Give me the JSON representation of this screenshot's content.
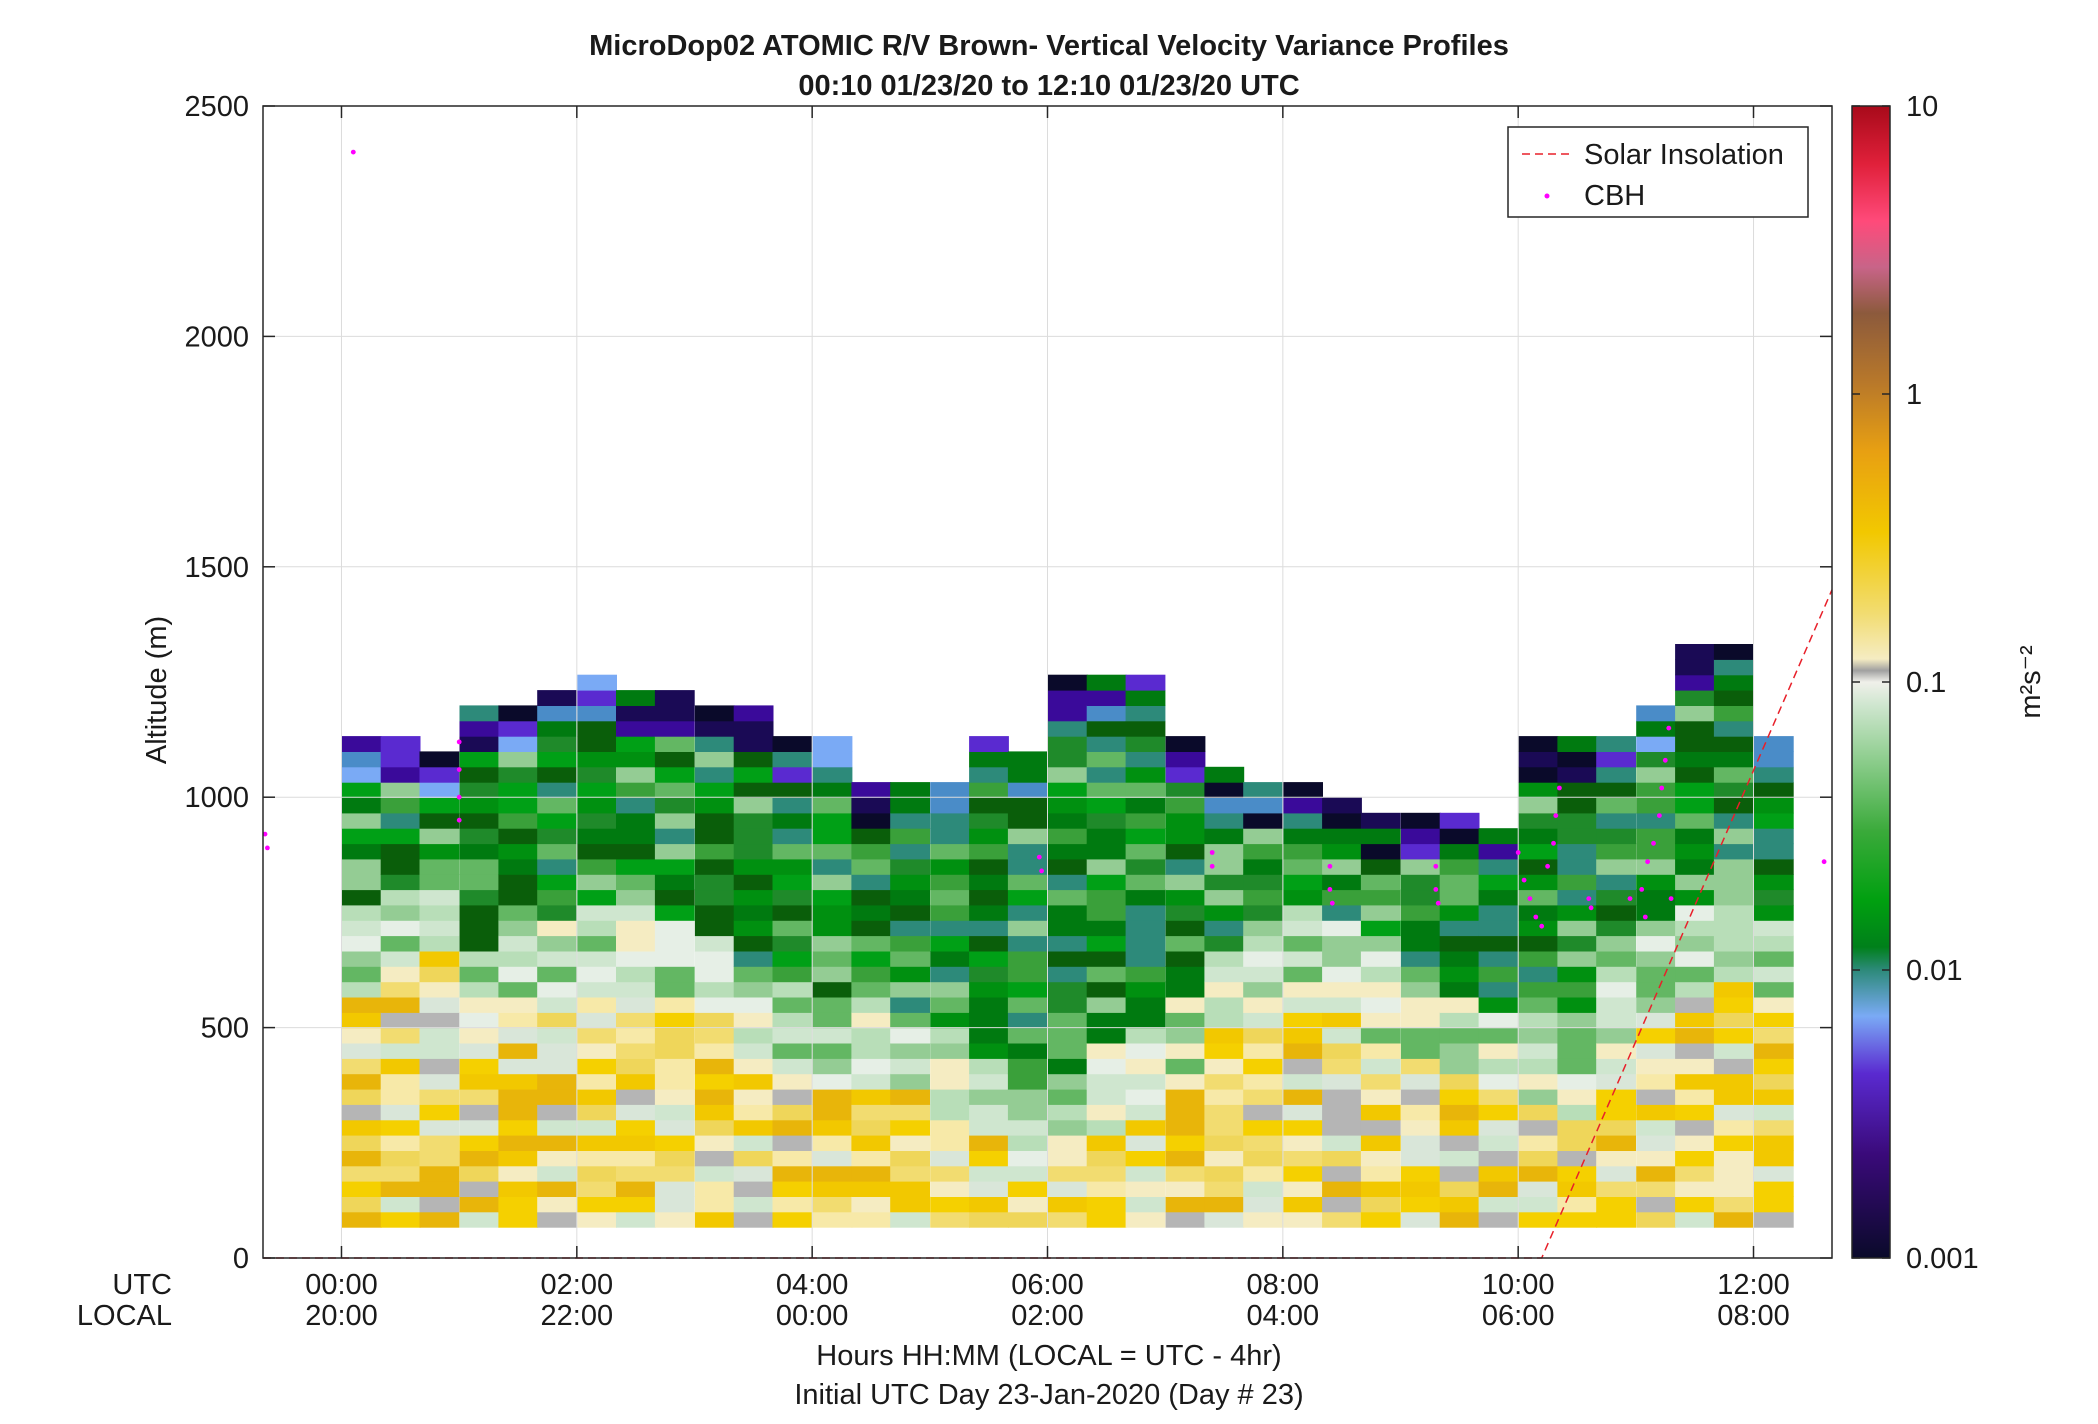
{
  "chart_data": {
    "type": "heatmap",
    "title": "MicroDop02 ATOMIC R/V Brown- Vertical Velocity Variance Profiles",
    "subtitle": "00:10 01/23/20 to 12:10 01/23/20  UTC",
    "ylabel": "Altitude (m)",
    "xlabel": "Hours HH:MM  (LOCAL = UTC - 4hr)",
    "footer": "Initial UTC Day 23-Jan-2020 (Day # 23)",
    "x_row_labels": [
      "UTC",
      "LOCAL"
    ],
    "ylim": [
      0,
      2500
    ],
    "xlim_hours_utc": [
      -0.667,
      12.667
    ],
    "y_ticks": [
      "0",
      "500",
      "1000",
      "1500",
      "2000",
      "2500"
    ],
    "x_ticks_utc": [
      "00:00",
      "02:00",
      "04:00",
      "06:00",
      "08:00",
      "10:00",
      "12:00"
    ],
    "x_ticks_local": [
      "20:00",
      "22:00",
      "00:00",
      "02:00",
      "04:00",
      "06:00",
      "08:00"
    ],
    "grid": true,
    "legend_position": "top-right",
    "legend": [
      "Solar Insolation",
      "CBH"
    ],
    "colorbar": {
      "label": "m²s⁻²",
      "scale": "log",
      "range": [
        0.001,
        10
      ],
      "tick_labels": [
        "0.001",
        "0.01",
        "0.1",
        "1",
        "10"
      ]
    },
    "colors": {
      "solar": "#e8202a",
      "cbh": "#ff00ff"
    },
    "profile_time_step_hours": 0.3333,
    "range_gate_m": 33.3,
    "profiles": [
      {
        "t": -0.5,
        "top": 0,
        "mix_top": 0
      },
      {
        "t": 0.17,
        "top": 1117,
        "mix_top": 600
      },
      {
        "t": 0.5,
        "top": 1117,
        "mix_top": 640
      },
      {
        "t": 0.83,
        "top": 1083,
        "mix_top": 700
      },
      {
        "t": 1.17,
        "top": 1183,
        "mix_top": 520
      },
      {
        "t": 1.5,
        "top": 1183,
        "mix_top": 560
      },
      {
        "t": 1.83,
        "top": 1217,
        "mix_top": 580
      },
      {
        "t": 2.17,
        "top": 1250,
        "mix_top": 620
      },
      {
        "t": 2.5,
        "top": 1217,
        "mix_top": 600
      },
      {
        "t": 2.83,
        "top": 1217,
        "mix_top": 580
      },
      {
        "t": 3.17,
        "top": 1183,
        "mix_top": 540
      },
      {
        "t": 3.5,
        "top": 1183,
        "mix_top": 460
      },
      {
        "t": 3.83,
        "top": 1117,
        "mix_top": 440
      },
      {
        "t": 4.17,
        "top": 1117,
        "mix_top": 400
      },
      {
        "t": 4.5,
        "top": 1017,
        "mix_top": 430
      },
      {
        "t": 4.83,
        "top": 1017,
        "mix_top": 380
      },
      {
        "t": 5.17,
        "top": 1017,
        "mix_top": 330
      },
      {
        "t": 5.5,
        "top": 1117,
        "mix_top": 280
      },
      {
        "t": 5.83,
        "top": 1083,
        "mix_top": 220
      },
      {
        "t": 6.17,
        "top": 1250,
        "mix_top": 260
      },
      {
        "t": 6.5,
        "top": 1250,
        "mix_top": 300
      },
      {
        "t": 6.83,
        "top": 1250,
        "mix_top": 340
      },
      {
        "t": 7.17,
        "top": 1117,
        "mix_top": 400
      },
      {
        "t": 7.5,
        "top": 1050,
        "mix_top": 520
      },
      {
        "t": 7.83,
        "top": 1017,
        "mix_top": 560
      },
      {
        "t": 8.17,
        "top": 1017,
        "mix_top": 600
      },
      {
        "t": 8.5,
        "top": 983,
        "mix_top": 560
      },
      {
        "t": 8.83,
        "top": 950,
        "mix_top": 500
      },
      {
        "t": 9.17,
        "top": 950,
        "mix_top": 460
      },
      {
        "t": 9.5,
        "top": 950,
        "mix_top": 420
      },
      {
        "t": 9.83,
        "top": 917,
        "mix_top": 380
      },
      {
        "t": 10.17,
        "top": 1117,
        "mix_top": 360
      },
      {
        "t": 10.5,
        "top": 1117,
        "mix_top": 340
      },
      {
        "t": 10.83,
        "top": 1117,
        "mix_top": 500
      },
      {
        "t": 11.17,
        "top": 1183,
        "mix_top": 560
      },
      {
        "t": 11.5,
        "top": 1317,
        "mix_top": 600
      },
      {
        "t": 11.83,
        "top": 1317,
        "mix_top": 620
      },
      {
        "t": 12.17,
        "top": 1117,
        "mix_top": 560
      }
    ],
    "cbh_points": [
      {
        "t": -0.65,
        "alt": 920
      },
      {
        "t": -0.63,
        "alt": 890
      },
      {
        "t": 0.1,
        "alt": 2400
      },
      {
        "t": 1.0,
        "alt": 1120
      },
      {
        "t": 1.0,
        "alt": 1060
      },
      {
        "t": 1.0,
        "alt": 1000
      },
      {
        "t": 1.0,
        "alt": 950
      },
      {
        "t": 5.93,
        "alt": 870
      },
      {
        "t": 5.95,
        "alt": 840
      },
      {
        "t": 7.4,
        "alt": 880
      },
      {
        "t": 7.4,
        "alt": 850
      },
      {
        "t": 8.4,
        "alt": 850
      },
      {
        "t": 8.4,
        "alt": 800
      },
      {
        "t": 8.42,
        "alt": 770
      },
      {
        "t": 9.3,
        "alt": 850
      },
      {
        "t": 9.3,
        "alt": 800
      },
      {
        "t": 9.32,
        "alt": 770
      },
      {
        "t": 10.0,
        "alt": 880
      },
      {
        "t": 10.05,
        "alt": 820
      },
      {
        "t": 10.1,
        "alt": 780
      },
      {
        "t": 10.15,
        "alt": 740
      },
      {
        "t": 10.2,
        "alt": 720
      },
      {
        "t": 10.25,
        "alt": 850
      },
      {
        "t": 10.3,
        "alt": 900
      },
      {
        "t": 10.32,
        "alt": 960
      },
      {
        "t": 10.35,
        "alt": 1020
      },
      {
        "t": 10.6,
        "alt": 780
      },
      {
        "t": 10.62,
        "alt": 760
      },
      {
        "t": 10.95,
        "alt": 780
      },
      {
        "t": 11.05,
        "alt": 800
      },
      {
        "t": 11.08,
        "alt": 740
      },
      {
        "t": 11.1,
        "alt": 860
      },
      {
        "t": 11.15,
        "alt": 900
      },
      {
        "t": 11.2,
        "alt": 960
      },
      {
        "t": 11.22,
        "alt": 1020
      },
      {
        "t": 11.25,
        "alt": 1080
      },
      {
        "t": 11.28,
        "alt": 1150
      },
      {
        "t": 11.3,
        "alt": 780
      },
      {
        "t": 12.6,
        "alt": 860
      }
    ],
    "solar_insolation_line": {
      "points": [
        {
          "t": -0.667,
          "alt": 0
        },
        {
          "t": 10.2,
          "alt": 0
        },
        {
          "t": 12.667,
          "alt": 1450
        }
      ]
    }
  }
}
